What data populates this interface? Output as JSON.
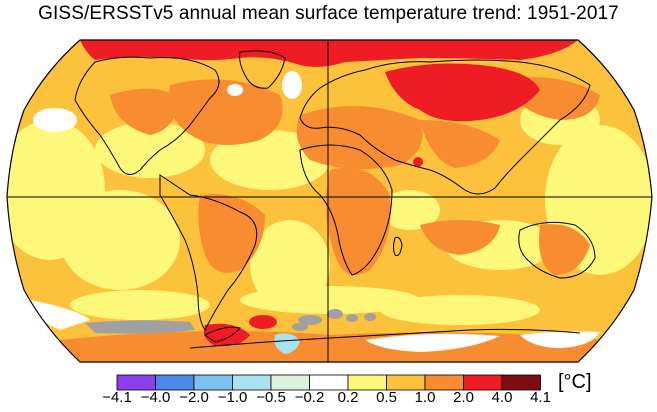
{
  "title": "GISS/ERSSTv5 annual mean surface temperature trend: 1951-2017",
  "map": {
    "projection": "Robinson",
    "missing_data_color": "#a0a0a0",
    "coastline_color": "#000000"
  },
  "legend": {
    "unit": "[°C]",
    "tick_labels": [
      "−4.1",
      "−4.0",
      "−2.0",
      "−1.0",
      "−0.5",
      "−0.2",
      "0.2",
      "0.5",
      "1.0",
      "2.0",
      "4.0",
      "4.1"
    ],
    "bins": [
      {
        "range": "-4.1 to -4.0",
        "color": "#8a3fe8"
      },
      {
        "range": "-4.0 to -2.0",
        "color": "#4d88e8"
      },
      {
        "range": "-2.0 to -1.0",
        "color": "#7cc1f0"
      },
      {
        "range": "-1.0 to -0.5",
        "color": "#a8e1f0"
      },
      {
        "range": "-0.5 to -0.2",
        "color": "#dbf2dc"
      },
      {
        "range": "-0.2 to 0.2",
        "color": "#ffffff"
      },
      {
        "range": "0.2 to 0.5",
        "color": "#fdf77a"
      },
      {
        "range": "0.5 to 1.0",
        "color": "#fcc23c"
      },
      {
        "range": "1.0 to 2.0",
        "color": "#f78c30"
      },
      {
        "range": "2.0 to 4.0",
        "color": "#ee1c24"
      },
      {
        "range": "4.0 to 4.1",
        "color": "#7b0e12"
      }
    ]
  }
}
